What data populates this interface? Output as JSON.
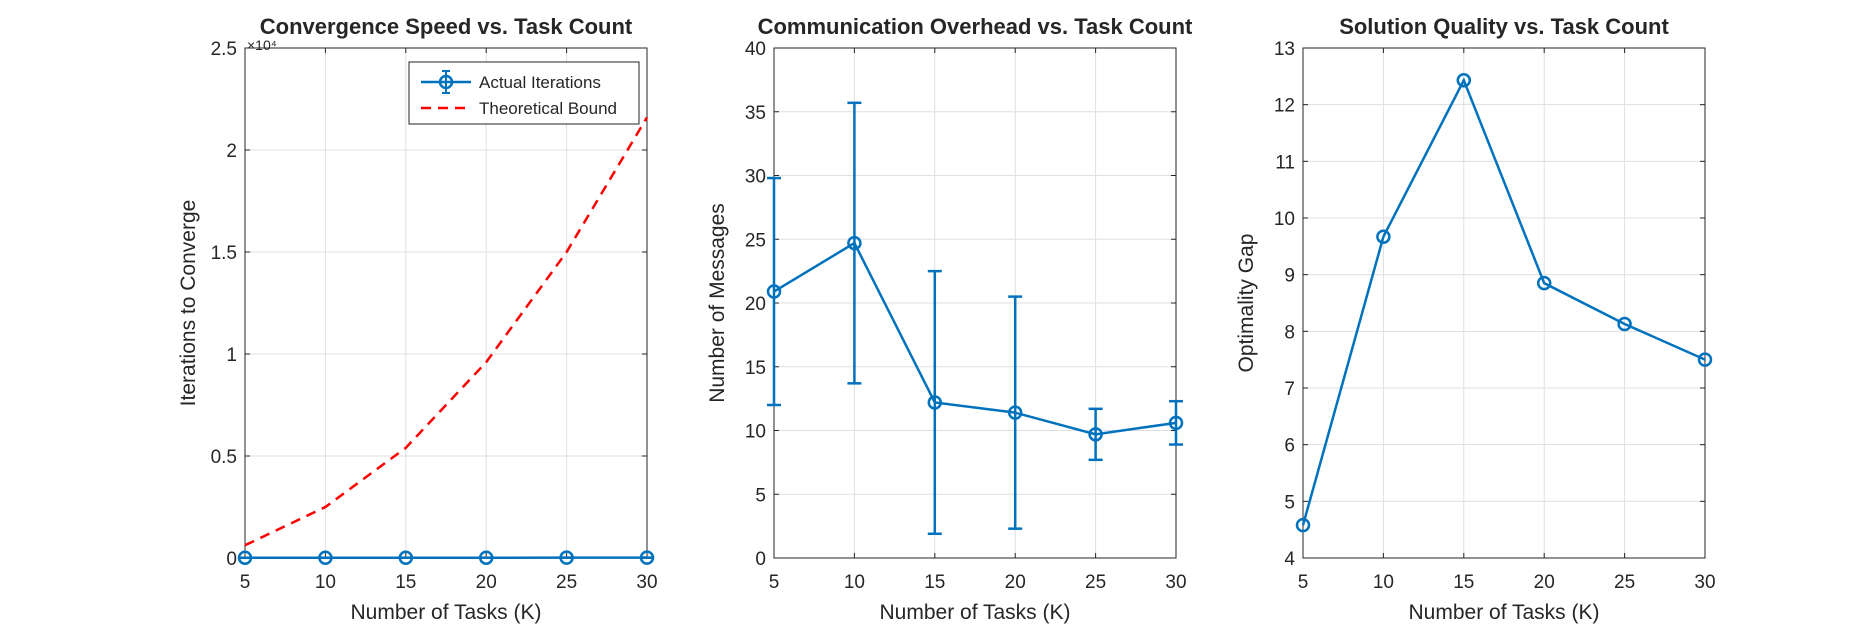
{
  "chart_data": [
    {
      "type": "line",
      "title": "Convergence Speed vs. Task Count",
      "xlabel": "Number of Tasks (K)",
      "ylabel": "Iterations to Converge",
      "x": [
        5,
        10,
        15,
        20,
        25,
        30
      ],
      "xlim": [
        5,
        30
      ],
      "ylim": [
        0,
        25000
      ],
      "xticks": [
        "5",
        "10",
        "15",
        "20",
        "25",
        "30"
      ],
      "yticks": [
        "0",
        "0.5",
        "1",
        "1.5",
        "2",
        "2.5"
      ],
      "yexponent": "×10⁴",
      "grid": true,
      "legend_position": "top-right",
      "series": [
        {
          "name": "Actual Iterations",
          "values": [
            10,
            12,
            14,
            15,
            16,
            17
          ],
          "error": [
            2,
            2,
            2,
            2,
            2,
            2
          ],
          "color": "#0072BD",
          "style": "solid",
          "marker": "circle"
        },
        {
          "name": "Theoretical Bound",
          "values": [
            625,
            2500,
            5400,
            9600,
            15000,
            21600
          ],
          "color": "#FF0000",
          "style": "dashed"
        }
      ]
    },
    {
      "type": "line",
      "title": "Communication Overhead vs. Task Count",
      "xlabel": "Number of Tasks (K)",
      "ylabel": "Number of Messages",
      "x": [
        5,
        10,
        15,
        20,
        25,
        30
      ],
      "xlim": [
        5,
        30
      ],
      "ylim": [
        0,
        40
      ],
      "xticks": [
        "5",
        "10",
        "15",
        "20",
        "25",
        "30"
      ],
      "yticks": [
        "0",
        "5",
        "10",
        "15",
        "20",
        "25",
        "30",
        "35",
        "40"
      ],
      "grid": true,
      "series": [
        {
          "values": [
            20.9,
            24.7,
            12.2,
            11.4,
            9.7,
            10.6
          ],
          "error": [
            8.9,
            11.0,
            10.3,
            9.1,
            2.0,
            1.7
          ],
          "color": "#0072BD",
          "style": "solid",
          "marker": "circle"
        }
      ]
    },
    {
      "type": "line",
      "title": "Solution Quality vs. Task Count",
      "xlabel": "Number of Tasks (K)",
      "ylabel": "Optimality Gap",
      "x": [
        5,
        10,
        15,
        20,
        25,
        30
      ],
      "xlim": [
        5,
        30
      ],
      "ylim": [
        4,
        13
      ],
      "xticks": [
        "5",
        "10",
        "15",
        "20",
        "25",
        "30"
      ],
      "yticks": [
        "4",
        "5",
        "6",
        "7",
        "8",
        "9",
        "10",
        "11",
        "12",
        "13"
      ],
      "grid": true,
      "series": [
        {
          "values": [
            4.58,
            9.67,
            12.43,
            8.85,
            8.13,
            7.5
          ],
          "color": "#0072BD",
          "style": "solid",
          "marker": "circle"
        }
      ]
    }
  ]
}
